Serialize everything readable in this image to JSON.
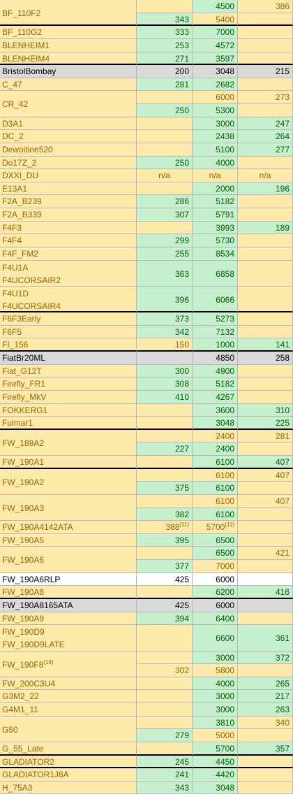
{
  "colors": {
    "neutral_bg": "#fde9a9",
    "good_bg": "#c6efce",
    "gray_bg": "#d9d9d9",
    "white_bg": "#ffffff",
    "neutral_text": "#9c6500",
    "good_text": "#006100",
    "black_text": "#000000"
  },
  "rows": [
    {
      "name": "BF_110F2",
      "lines": 2,
      "thick": true,
      "sub": [
        {
          "c1": {
            "v": "",
            "s": "y"
          },
          "c2": {
            "v": "4500",
            "s": "g"
          },
          "c3": {
            "v": "386",
            "s": "y"
          }
        },
        {
          "c1": {
            "v": "343",
            "s": "g"
          },
          "c2": {
            "v": "5400",
            "s": "y"
          },
          "c3": {
            "v": "",
            "s": "y"
          }
        }
      ]
    },
    {
      "name": "BF_110G2",
      "lines": 1,
      "sub": [
        {
          "c1": {
            "v": "333",
            "s": "g"
          },
          "c2": {
            "v": "7000",
            "s": "g"
          },
          "c3": {
            "v": "",
            "s": "y"
          }
        }
      ]
    },
    {
      "name": "BLENHEIM1",
      "lines": 1,
      "sub": [
        {
          "c1": {
            "v": "253",
            "s": "g"
          },
          "c2": {
            "v": "4572",
            "s": "g"
          },
          "c3": {
            "v": "",
            "s": "y"
          }
        }
      ]
    },
    {
      "name": "BLENHEIM4",
      "lines": 1,
      "thick": true,
      "sub": [
        {
          "c1": {
            "v": "271",
            "s": "g"
          },
          "c2": {
            "v": "3597",
            "s": "g"
          },
          "c3": {
            "v": "",
            "s": "y"
          }
        }
      ]
    },
    {
      "name": "BristolBombay",
      "lines": 1,
      "nameStyle": "gr",
      "sub": [
        {
          "c1": {
            "v": "200",
            "s": "gr"
          },
          "c2": {
            "v": "3048",
            "s": "gr"
          },
          "c3": {
            "v": "215",
            "s": "gr"
          }
        }
      ]
    },
    {
      "name": "C_47",
      "lines": 1,
      "sub": [
        {
          "c1": {
            "v": "281",
            "s": "g"
          },
          "c2": {
            "v": "2682",
            "s": "g"
          },
          "c3": {
            "v": "",
            "s": "y"
          }
        }
      ]
    },
    {
      "name": "CR_42",
      "lines": 2,
      "sub": [
        {
          "c1": {
            "v": "",
            "s": "y"
          },
          "c2": {
            "v": "6000",
            "s": "y"
          },
          "c3": {
            "v": "273",
            "s": "y"
          }
        },
        {
          "c1": {
            "v": "250",
            "s": "g"
          },
          "c2": {
            "v": "5300",
            "s": "g"
          },
          "c3": {
            "v": "",
            "s": "y"
          }
        }
      ]
    },
    {
      "name": "D3A1",
      "lines": 1,
      "sub": [
        {
          "c1": {
            "v": "",
            "s": "y"
          },
          "c2": {
            "v": "3000",
            "s": "g"
          },
          "c3": {
            "v": "247",
            "s": "g"
          }
        }
      ]
    },
    {
      "name": "DC_2",
      "lines": 1,
      "sub": [
        {
          "c1": {
            "v": "",
            "s": "y"
          },
          "c2": {
            "v": "2438",
            "s": "g"
          },
          "c3": {
            "v": "264",
            "s": "g"
          }
        }
      ]
    },
    {
      "name": "Dewoitine520",
      "lines": 1,
      "sub": [
        {
          "c1": {
            "v": "",
            "s": "y"
          },
          "c2": {
            "v": "5100",
            "s": "g"
          },
          "c3": {
            "v": "277",
            "s": "g"
          }
        }
      ]
    },
    {
      "name": "Do17Z_2",
      "lines": 1,
      "sub": [
        {
          "c1": {
            "v": "250",
            "s": "g"
          },
          "c2": {
            "v": "4000",
            "s": "g"
          },
          "c3": {
            "v": "",
            "s": "y"
          }
        }
      ]
    },
    {
      "name": "DXXI_DU",
      "lines": 1,
      "sub": [
        {
          "c1": {
            "v": "n/a",
            "s": "y",
            "al": "ctr"
          },
          "c2": {
            "v": "n/a",
            "s": "y",
            "al": "ctr"
          },
          "c3": {
            "v": "n/a",
            "s": "y",
            "al": "ctr"
          }
        }
      ]
    },
    {
      "name": "E13A1",
      "lines": 1,
      "sub": [
        {
          "c1": {
            "v": "",
            "s": "y"
          },
          "c2": {
            "v": "2000",
            "s": "g"
          },
          "c3": {
            "v": "196",
            "s": "g"
          }
        }
      ]
    },
    {
      "name": "F2A_B239",
      "lines": 1,
      "sub": [
        {
          "c1": {
            "v": "286",
            "s": "g"
          },
          "c2": {
            "v": "5182",
            "s": "g"
          },
          "c3": {
            "v": "",
            "s": "y"
          }
        }
      ]
    },
    {
      "name": "F2A_B339",
      "lines": 1,
      "sub": [
        {
          "c1": {
            "v": "307",
            "s": "g"
          },
          "c2": {
            "v": "5791",
            "s": "g"
          },
          "c3": {
            "v": "",
            "s": "y"
          }
        }
      ]
    },
    {
      "name": "F4F3",
      "lines": 1,
      "sub": [
        {
          "c1": {
            "v": "",
            "s": "y"
          },
          "c2": {
            "v": "3993",
            "s": "g"
          },
          "c3": {
            "v": "189",
            "s": "g"
          }
        }
      ]
    },
    {
      "name": "F4F4",
      "lines": 1,
      "sub": [
        {
          "c1": {
            "v": "299",
            "s": "g"
          },
          "c2": {
            "v": "5730",
            "s": "g"
          },
          "c3": {
            "v": "",
            "s": "y"
          }
        }
      ]
    },
    {
      "name": "F4F_FM2",
      "lines": 1,
      "sub": [
        {
          "c1": {
            "v": "255",
            "s": "g"
          },
          "c2": {
            "v": "8534",
            "s": "g"
          },
          "c3": {
            "v": "",
            "s": "y"
          }
        }
      ]
    },
    {
      "name": "F4U1A",
      "name2": "F4UCORSAIR2",
      "lines": 2,
      "merged": true,
      "sub": [
        {
          "c1": {
            "v": "363",
            "s": "g"
          },
          "c2": {
            "v": "6858",
            "s": "g"
          },
          "c3": {
            "v": "",
            "s": "y"
          }
        }
      ]
    },
    {
      "name": "F4U1D",
      "name2": "F4UCORSAIR4",
      "lines": 2,
      "merged": true,
      "thick": true,
      "sub": [
        {
          "c1": {
            "v": "396",
            "s": "g"
          },
          "c2": {
            "v": "6066",
            "s": "g"
          },
          "c3": {
            "v": "",
            "s": "y"
          }
        }
      ]
    },
    {
      "name": "F6F3Early",
      "lines": 1,
      "sub": [
        {
          "c1": {
            "v": "373",
            "s": "g"
          },
          "c2": {
            "v": "5273",
            "s": "g"
          },
          "c3": {
            "v": "",
            "s": "y"
          }
        }
      ]
    },
    {
      "name": "F6F5",
      "lines": 1,
      "sub": [
        {
          "c1": {
            "v": "342",
            "s": "g"
          },
          "c2": {
            "v": "7132",
            "s": "g"
          },
          "c3": {
            "v": "",
            "s": "y"
          }
        }
      ]
    },
    {
      "name": "FI_156",
      "lines": 1,
      "thick": true,
      "sub": [
        {
          "c1": {
            "v": "150",
            "s": "y"
          },
          "c2": {
            "v": "1000",
            "s": "g"
          },
          "c3": {
            "v": "141",
            "s": "g"
          }
        }
      ]
    },
    {
      "name": "FiatBr20ML",
      "lines": 1,
      "nameStyle": "gr",
      "sub": [
        {
          "c1": {
            "v": "",
            "s": "gr"
          },
          "c2": {
            "v": "4850",
            "s": "gr"
          },
          "c3": {
            "v": "258",
            "s": "gr"
          }
        }
      ]
    },
    {
      "name": "Fiat_G12T",
      "lines": 1,
      "sub": [
        {
          "c1": {
            "v": "300",
            "s": "g"
          },
          "c2": {
            "v": "4900",
            "s": "g"
          },
          "c3": {
            "v": "",
            "s": "y"
          }
        }
      ]
    },
    {
      "name": "Firefly_FR1",
      "lines": 1,
      "sub": [
        {
          "c1": {
            "v": "308",
            "s": "g"
          },
          "c2": {
            "v": "5182",
            "s": "g"
          },
          "c3": {
            "v": "",
            "s": "y"
          }
        }
      ]
    },
    {
      "name": "Firefly_MkV",
      "lines": 1,
      "sub": [
        {
          "c1": {
            "v": "410",
            "s": "g"
          },
          "c2": {
            "v": "4267",
            "s": "g"
          },
          "c3": {
            "v": "",
            "s": "y"
          }
        }
      ]
    },
    {
      "name": "FOKKERG1",
      "lines": 1,
      "sub": [
        {
          "c1": {
            "v": "",
            "s": "y"
          },
          "c2": {
            "v": "3600",
            "s": "g"
          },
          "c3": {
            "v": "310",
            "s": "g"
          }
        }
      ]
    },
    {
      "name": "Fulmar1",
      "lines": 1,
      "thick": true,
      "sub": [
        {
          "c1": {
            "v": "",
            "s": "y"
          },
          "c2": {
            "v": "3048",
            "s": "g"
          },
          "c3": {
            "v": "225",
            "s": "g"
          }
        }
      ]
    },
    {
      "name": "FW_189A2",
      "lines": 2,
      "sub": [
        {
          "c1": {
            "v": "",
            "s": "y"
          },
          "c2": {
            "v": "2400",
            "s": "y"
          },
          "c3": {
            "v": "281",
            "s": "y"
          }
        },
        {
          "c1": {
            "v": "227",
            "s": "g"
          },
          "c2": {
            "v": "2400",
            "s": "g"
          },
          "c3": {
            "v": "",
            "s": "y"
          }
        }
      ]
    },
    {
      "name": "FW_190A1",
      "lines": 1,
      "thick": true,
      "sub": [
        {
          "c1": {
            "v": "",
            "s": "y"
          },
          "c2": {
            "v": "6100",
            "s": "g"
          },
          "c3": {
            "v": "407",
            "s": "g"
          }
        }
      ]
    },
    {
      "name": "FW_190A2",
      "lines": 2,
      "sub": [
        {
          "c1": {
            "v": "",
            "s": "y"
          },
          "c2": {
            "v": "6100",
            "s": "y"
          },
          "c3": {
            "v": "407",
            "s": "y"
          }
        },
        {
          "c1": {
            "v": "375",
            "s": "g"
          },
          "c2": {
            "v": "6100",
            "s": "g"
          },
          "c3": {
            "v": "",
            "s": "y"
          }
        }
      ]
    },
    {
      "name": "FW_190A3",
      "lines": 2,
      "sub": [
        {
          "c1": {
            "v": "",
            "s": "y"
          },
          "c2": {
            "v": "6100",
            "s": "y"
          },
          "c3": {
            "v": "407",
            "s": "y"
          }
        },
        {
          "c1": {
            "v": "382",
            "s": "g"
          },
          "c2": {
            "v": "6100",
            "s": "g"
          },
          "c3": {
            "v": "",
            "s": "y"
          }
        }
      ]
    },
    {
      "name": "FW_190A4142ATA",
      "lines": 1,
      "sub": [
        {
          "c1": {
            "v": "388",
            "s": "y",
            "sup": "(11)"
          },
          "c2": {
            "v": "5700",
            "s": "y",
            "sup": "(11)"
          },
          "c3": {
            "v": "",
            "s": "y"
          }
        }
      ]
    },
    {
      "name": "FW_190A5",
      "lines": 1,
      "sub": [
        {
          "c1": {
            "v": "395",
            "s": "g"
          },
          "c2": {
            "v": "6500",
            "s": "g"
          },
          "c3": {
            "v": "",
            "s": "y"
          }
        }
      ]
    },
    {
      "name": "FW_190A6",
      "lines": 2,
      "sub": [
        {
          "c1": {
            "v": "",
            "s": "y"
          },
          "c2": {
            "v": "6500",
            "s": "g"
          },
          "c3": {
            "v": "421",
            "s": "y"
          }
        },
        {
          "c1": {
            "v": "377",
            "s": "g"
          },
          "c2": {
            "v": "7000",
            "s": "y"
          },
          "c3": {
            "v": "",
            "s": "y"
          }
        }
      ]
    },
    {
      "name": "FW_190A6RLP",
      "lines": 1,
      "nameStyle": "w",
      "sub": [
        {
          "c1": {
            "v": "425",
            "s": "w"
          },
          "c2": {
            "v": "6000",
            "s": "w"
          },
          "c3": {
            "v": "",
            "s": "w"
          }
        }
      ]
    },
    {
      "name": "FW_190A8",
      "lines": 1,
      "thick": true,
      "sub": [
        {
          "c1": {
            "v": "",
            "s": "y"
          },
          "c2": {
            "v": "6200",
            "s": "g"
          },
          "c3": {
            "v": "416",
            "s": "g"
          }
        }
      ]
    },
    {
      "name": "FW_190A8165ATA",
      "lines": 1,
      "nameStyle": "gr",
      "sub": [
        {
          "c1": {
            "v": "425",
            "s": "gr"
          },
          "c2": {
            "v": "6000",
            "s": "gr"
          },
          "c3": {
            "v": "",
            "s": "gr"
          }
        }
      ]
    },
    {
      "name": "FW_190A9",
      "lines": 1,
      "sub": [
        {
          "c1": {
            "v": "394",
            "s": "g"
          },
          "c2": {
            "v": "6400",
            "s": "g"
          },
          "c3": {
            "v": "",
            "s": "y"
          }
        }
      ]
    },
    {
      "name": "FW_190D9",
      "name2": "FW_190D9LATE",
      "lines": 2,
      "merged": true,
      "sub": [
        {
          "c1": {
            "v": "",
            "s": "y"
          },
          "c2": {
            "v": "6600",
            "s": "g"
          },
          "c3": {
            "v": "361",
            "s": "g"
          }
        }
      ]
    },
    {
      "name": "FW_190F8",
      "nameSup": "(14)",
      "lines": 2,
      "sub": [
        {
          "c1": {
            "v": "",
            "s": "y"
          },
          "c2": {
            "v": "3000",
            "s": "g"
          },
          "c3": {
            "v": "372",
            "s": "g"
          }
        },
        {
          "c1": {
            "v": "302",
            "s": "y"
          },
          "c2": {
            "v": "5800",
            "s": "y"
          },
          "c3": {
            "v": "",
            "s": "y"
          }
        }
      ]
    },
    {
      "name": "FW_200C3U4",
      "lines": 1,
      "sub": [
        {
          "c1": {
            "v": "",
            "s": "y"
          },
          "c2": {
            "v": "4000",
            "s": "g"
          },
          "c3": {
            "v": "265",
            "s": "g"
          }
        }
      ]
    },
    {
      "name": "G3M2_22",
      "lines": 1,
      "sub": [
        {
          "c1": {
            "v": "",
            "s": "y"
          },
          "c2": {
            "v": "3000",
            "s": "g"
          },
          "c3": {
            "v": "217",
            "s": "g"
          }
        }
      ]
    },
    {
      "name": "G4M1_11",
      "lines": 1,
      "sub": [
        {
          "c1": {
            "v": "",
            "s": "y"
          },
          "c2": {
            "v": "3000",
            "s": "g"
          },
          "c3": {
            "v": "263",
            "s": "g"
          }
        }
      ]
    },
    {
      "name": "G50",
      "lines": 2,
      "sub": [
        {
          "c1": {
            "v": "",
            "s": "y"
          },
          "c2": {
            "v": "3810",
            "s": "g"
          },
          "c3": {
            "v": "340",
            "s": "y"
          }
        },
        {
          "c1": {
            "v": "279",
            "s": "g"
          },
          "c2": {
            "v": "5000",
            "s": "y"
          },
          "c3": {
            "v": "",
            "s": "y"
          }
        }
      ]
    },
    {
      "name": "G_55_Late",
      "lines": 1,
      "thick": true,
      "sub": [
        {
          "c1": {
            "v": "",
            "s": "y"
          },
          "c2": {
            "v": "5700",
            "s": "g"
          },
          "c3": {
            "v": "357",
            "s": "g"
          }
        }
      ]
    },
    {
      "name": "GLADIATOR2",
      "lines": 1,
      "thick": true,
      "sub": [
        {
          "c1": {
            "v": "245",
            "s": "g"
          },
          "c2": {
            "v": "4450",
            "s": "g"
          },
          "c3": {
            "v": "",
            "s": "y"
          }
        }
      ]
    },
    {
      "name": "GLADIATOR1J8A",
      "lines": 1,
      "sub": [
        {
          "c1": {
            "v": "241",
            "s": "g"
          },
          "c2": {
            "v": "4420",
            "s": "g"
          },
          "c3": {
            "v": "",
            "s": "y"
          }
        }
      ]
    },
    {
      "name": "H_75A3",
      "lines": 1,
      "sub": [
        {
          "c1": {
            "v": "343",
            "s": "g"
          },
          "c2": {
            "v": "3048",
            "s": "g"
          },
          "c3": {
            "v": "",
            "s": "y"
          }
        }
      ]
    }
  ]
}
